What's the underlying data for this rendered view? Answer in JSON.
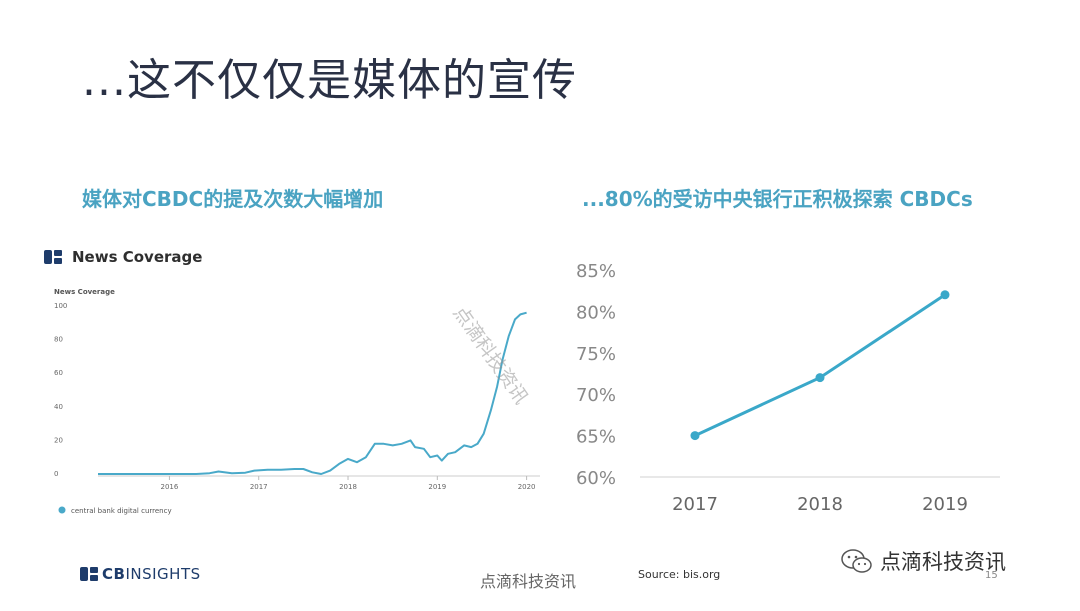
{
  "title": "...这不仅仅是媒体的宣传",
  "left_subtitle": "媒体对CBDC的提及次数大幅增加",
  "right_subtitle": "...80%的受访中央银行正积极探索 CBDCs",
  "colors": {
    "accent": "#4aa3c2",
    "line": "#49a9c9",
    "right_line": "#3aa8c9",
    "title": "#2a3145"
  },
  "news_chart": {
    "header": "News Coverage",
    "axis_title": "News Coverage",
    "legend": "central bank digital currency"
  },
  "footer": {
    "logo_prefix": "CB",
    "logo_suffix": "INSIGHTS",
    "center_text": "点滴科技资讯",
    "source": "Source: bis.org",
    "wechat": "点滴科技资讯",
    "page": "15"
  },
  "watermark": "点滴科技资讯",
  "chart_data": [
    {
      "type": "line",
      "title": "News Coverage",
      "ylabel": "News Coverage",
      "ylim": [
        0,
        100
      ],
      "yticks": [
        0,
        20,
        40,
        60,
        80,
        100
      ],
      "xticks": [
        "2016",
        "2017",
        "2018",
        "2019",
        "2020"
      ],
      "xlim": [
        2015.2,
        2020.15
      ],
      "series": [
        {
          "name": "central bank digital currency",
          "x": [
            2015.2,
            2015.5,
            2015.8,
            2016.1,
            2016.3,
            2016.45,
            2016.55,
            2016.7,
            2016.85,
            2016.95,
            2017.1,
            2017.25,
            2017.4,
            2017.5,
            2017.6,
            2017.7,
            2017.8,
            2017.9,
            2018.0,
            2018.1,
            2018.2,
            2018.3,
            2018.4,
            2018.5,
            2018.6,
            2018.7,
            2018.75,
            2018.85,
            2018.92,
            2019.0,
            2019.05,
            2019.12,
            2019.2,
            2019.3,
            2019.38,
            2019.45,
            2019.52,
            2019.6,
            2019.67,
            2019.73,
            2019.8,
            2019.87,
            2019.93,
            2020.0
          ],
          "y": [
            0,
            0,
            0,
            0,
            0,
            0.5,
            1.5,
            0.5,
            0.8,
            2,
            2.5,
            2.5,
            3,
            3,
            1,
            0,
            2,
            6,
            9,
            7,
            10,
            18,
            18,
            17,
            18,
            20,
            16,
            15,
            10,
            11,
            8,
            12,
            13,
            17,
            16,
            18,
            24,
            38,
            52,
            68,
            82,
            92,
            95,
            96
          ]
        }
      ]
    },
    {
      "type": "line",
      "categories": [
        "2017",
        "2018",
        "2019"
      ],
      "values": [
        65,
        72,
        82
      ],
      "yticks": [
        "60%",
        "65%",
        "70%",
        "75%",
        "80%",
        "85%"
      ],
      "ylim": [
        60,
        85
      ]
    }
  ]
}
